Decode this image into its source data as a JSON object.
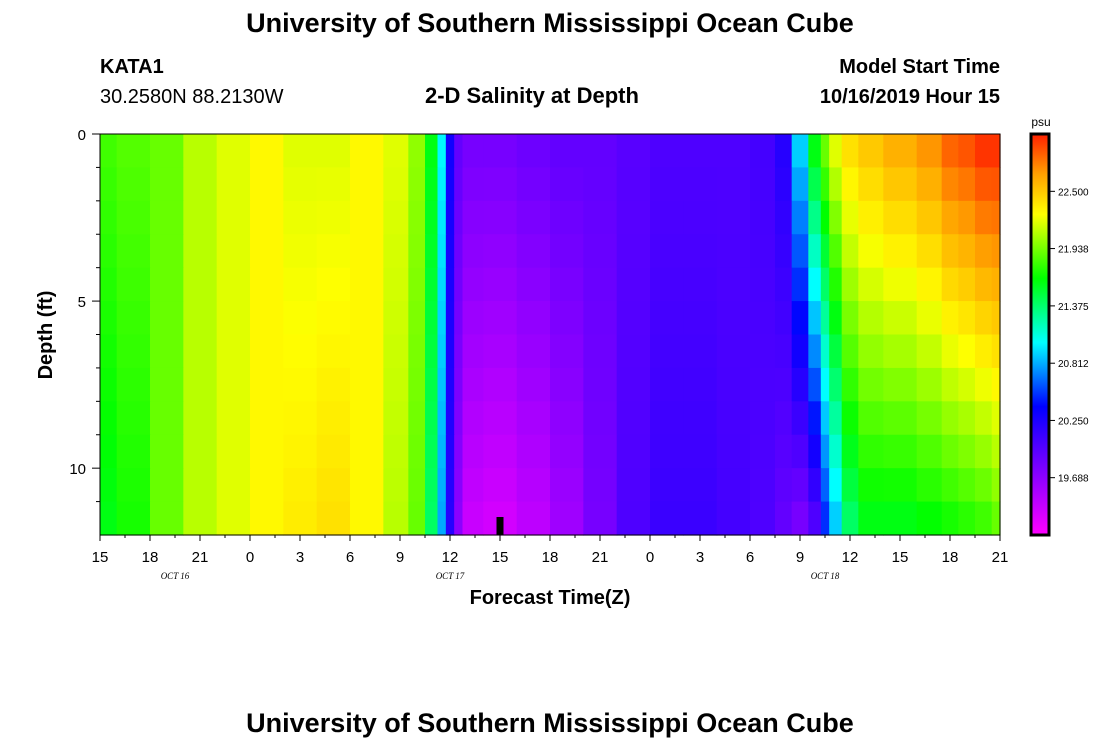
{
  "header": {
    "title": "University of Southern Mississippi Ocean Cube",
    "station": "KATA1",
    "coordinates": "30.2580N 88.2130W",
    "subtitle": "2-D Salinity at Depth",
    "model_start_label": "Model Start Time",
    "model_start_value": "10/16/2019 Hour 15"
  },
  "footer": {
    "title": "University of Southern Mississippi Ocean Cube"
  },
  "chart_data": {
    "type": "heatmap",
    "title": "2-D Salinity at Depth",
    "xlabel": "Forecast Time(Z)",
    "ylabel": "Depth (ft)",
    "units": "psu",
    "x_range_hours": [
      0,
      54
    ],
    "y_range_ft": [
      0,
      12
    ],
    "x_tick_labels": [
      "15",
      "18",
      "21",
      "0",
      "3",
      "6",
      "9",
      "12",
      "15",
      "18",
      "21",
      "0",
      "3",
      "6",
      "9",
      "12",
      "15",
      "18",
      "21"
    ],
    "date_labels": [
      {
        "text": "OCT 16",
        "hour": 4.5
      },
      {
        "text": "OCT 17",
        "hour": 21
      },
      {
        "text": "OCT 18",
        "hour": 43.5
      }
    ],
    "y_ticks": [
      0,
      5,
      10
    ],
    "current_time_hour": 24,
    "colorbar": {
      "min": 19.125,
      "max": 23.063,
      "tick_labels": [
        "22.500",
        "21.938",
        "21.375",
        "20.812",
        "20.250",
        "19.688"
      ],
      "tick_values": [
        22.5,
        21.938,
        21.375,
        20.812,
        20.25,
        19.688
      ]
    },
    "depth_levels_ft": [
      0.5,
      1.5,
      2.5,
      3.5,
      4.5,
      5.5,
      6.5,
      7.5,
      8.5,
      9.5,
      10.5,
      11.5
    ],
    "time_hours": [
      0,
      2,
      4,
      6,
      8,
      10,
      12,
      14,
      16,
      18,
      19,
      20,
      20.5,
      21,
      21.5,
      22,
      24,
      26,
      28,
      30,
      32,
      34,
      36,
      38,
      40,
      41,
      42,
      43,
      43.5,
      44,
      45,
      46,
      48,
      50,
      51,
      52,
      53,
      54
    ],
    "surface_salinity_psu": [
      21.8,
      21.85,
      21.9,
      22.1,
      22.2,
      22.3,
      22.2,
      22.2,
      22.3,
      22.2,
      22.0,
      21.6,
      21.0,
      20.3,
      19.9,
      19.8,
      19.8,
      19.85,
      19.9,
      19.9,
      19.95,
      20.0,
      20.0,
      20.0,
      20.05,
      20.2,
      20.9,
      21.6,
      21.9,
      22.2,
      22.4,
      22.5,
      22.6,
      22.7,
      22.85,
      22.9,
      23.0,
      23.0
    ],
    "bottom_salinity_psu": [
      21.6,
      21.7,
      21.9,
      22.1,
      22.2,
      22.3,
      22.35,
      22.4,
      22.3,
      22.1,
      21.9,
      21.4,
      20.8,
      20.2,
      19.7,
      19.4,
      19.35,
      19.45,
      19.6,
      19.8,
      20.0,
      20.1,
      20.1,
      20.05,
      20.0,
      19.9,
      19.8,
      20.0,
      20.5,
      20.9,
      21.4,
      21.6,
      21.6,
      21.65,
      21.7,
      21.75,
      21.8,
      21.9
    ]
  }
}
